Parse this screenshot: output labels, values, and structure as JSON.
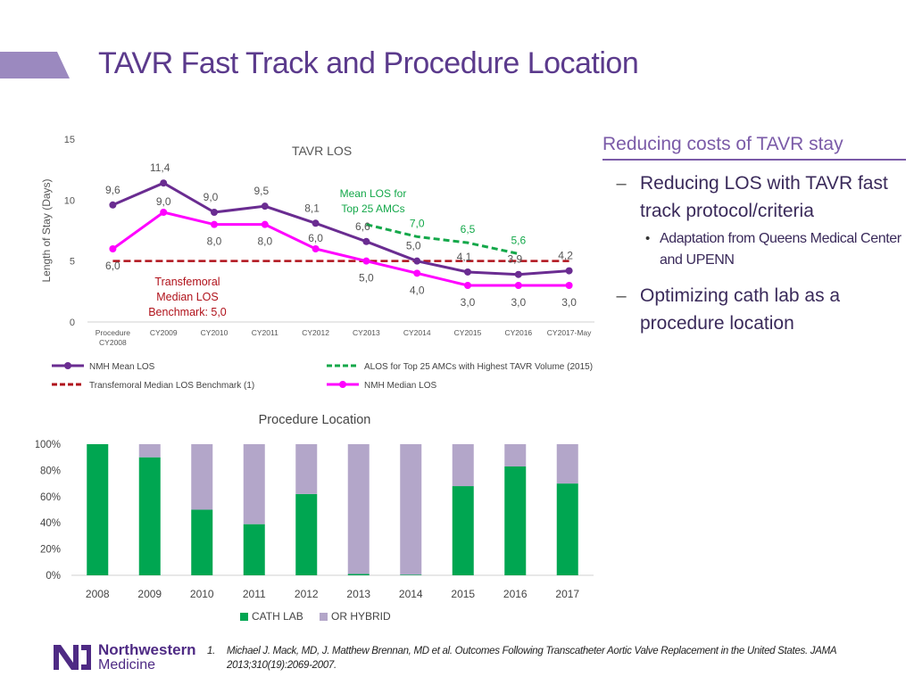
{
  "title": "TAVR Fast Track and Procedure Location",
  "side_panel": {
    "heading": "Reducing costs of TAVR stay",
    "bullets": [
      {
        "text": "Reducing LOS with TAVR fast track protocol/criteria",
        "sub": [
          "Adaptation from Queens Medical Center and UPENN"
        ]
      },
      {
        "text": "Optimizing cath lab as a procedure location",
        "sub": []
      }
    ]
  },
  "footer": {
    "logo_name": "Northwestern",
    "logo_sub": "Medicine",
    "reference_number": "1.",
    "reference_text": "Michael J. Mack, MD, J. Matthew Brennan, MD et al. Outcomes Following Transcatheter Aortic Valve Replacement in the United States. JAMA 2013;310(19):2069-2007."
  },
  "colors": {
    "title_purple": "#5b3a8c",
    "accent_bar": "#9b89bf",
    "nmh_mean": "#6a2c91",
    "nmh_median": "#ff00ff",
    "alos_green": "#14a84a",
    "benchmark_red": "#b0121b",
    "cath_lab": "#00a651",
    "or_hybrid": "#b3a6c9"
  },
  "chart_data": [
    {
      "type": "line",
      "title": "TAVR LOS",
      "ylabel": "Length of Stay (Days)",
      "ylim": [
        0,
        15
      ],
      "yticks": [
        0,
        5,
        10,
        15
      ],
      "categories": [
        "Procedure CY2008",
        "CY2009",
        "CY2010",
        "CY2011",
        "CY2012",
        "CY2013",
        "CY2014",
        "CY2015",
        "CY2016",
        "CY2017-May"
      ],
      "series": [
        {
          "name": "NMH Mean LOS",
          "values": [
            9.6,
            11.4,
            9.0,
            9.5,
            8.1,
            6.6,
            5.0,
            4.1,
            3.9,
            4.2
          ],
          "labels": [
            "9,6",
            "11,4",
            "9,0",
            "9,5",
            "8,1",
            "6,6",
            "5,0",
            "4,1",
            "3,9",
            "4,2"
          ]
        },
        {
          "name": "NMH Median LOS",
          "values": [
            6.0,
            9.0,
            8.0,
            8.0,
            6.0,
            5.0,
            4.0,
            3.0,
            3.0,
            3.0
          ],
          "labels": [
            "6,0",
            "9,0",
            "8,0",
            "8,0",
            "6,0",
            "5,0",
            "4,0",
            "3,0",
            "3,0",
            "3,0"
          ]
        },
        {
          "name": "ALOS for Top 25 AMCs with Highest TAVR Volume (2015)",
          "values": [
            null,
            null,
            null,
            null,
            null,
            8.0,
            7.0,
            6.5,
            5.6,
            null
          ],
          "labels": [
            "",
            "",
            "",
            "",
            "",
            "",
            "7,0",
            "6,5",
            "5,6",
            ""
          ]
        },
        {
          "name": "Transfemoral Median LOS Benchmark (1)",
          "values": [
            5.0,
            5.0,
            5.0,
            5.0,
            5.0,
            5.0,
            5.0,
            5.0,
            5.0,
            5.0
          ]
        }
      ],
      "annotations": {
        "benchmark": [
          "Transfemoral",
          "Median LOS",
          "Benchmark: 5,0"
        ],
        "alos": [
          "Mean LOS for",
          "Top 25 AMCs"
        ]
      },
      "legend": "bottom"
    },
    {
      "type": "bar",
      "stacked": true,
      "title": "Procedure Location",
      "categories": [
        "2008",
        "2009",
        "2010",
        "2011",
        "2012",
        "2013",
        "2014",
        "2015",
        "2016",
        "2017"
      ],
      "ylim": [
        0,
        100
      ],
      "yticks": [
        "0%",
        "20%",
        "40%",
        "60%",
        "80%",
        "100%"
      ],
      "series": [
        {
          "name": "CATH LAB",
          "values": [
            100,
            90,
            50,
            39,
            62,
            1,
            0.5,
            68,
            83,
            70
          ]
        },
        {
          "name": "OR HYBRID",
          "values": [
            0,
            10,
            50,
            61,
            38,
            99,
            99.5,
            32,
            17,
            30
          ]
        }
      ],
      "legend": "bottom"
    }
  ]
}
